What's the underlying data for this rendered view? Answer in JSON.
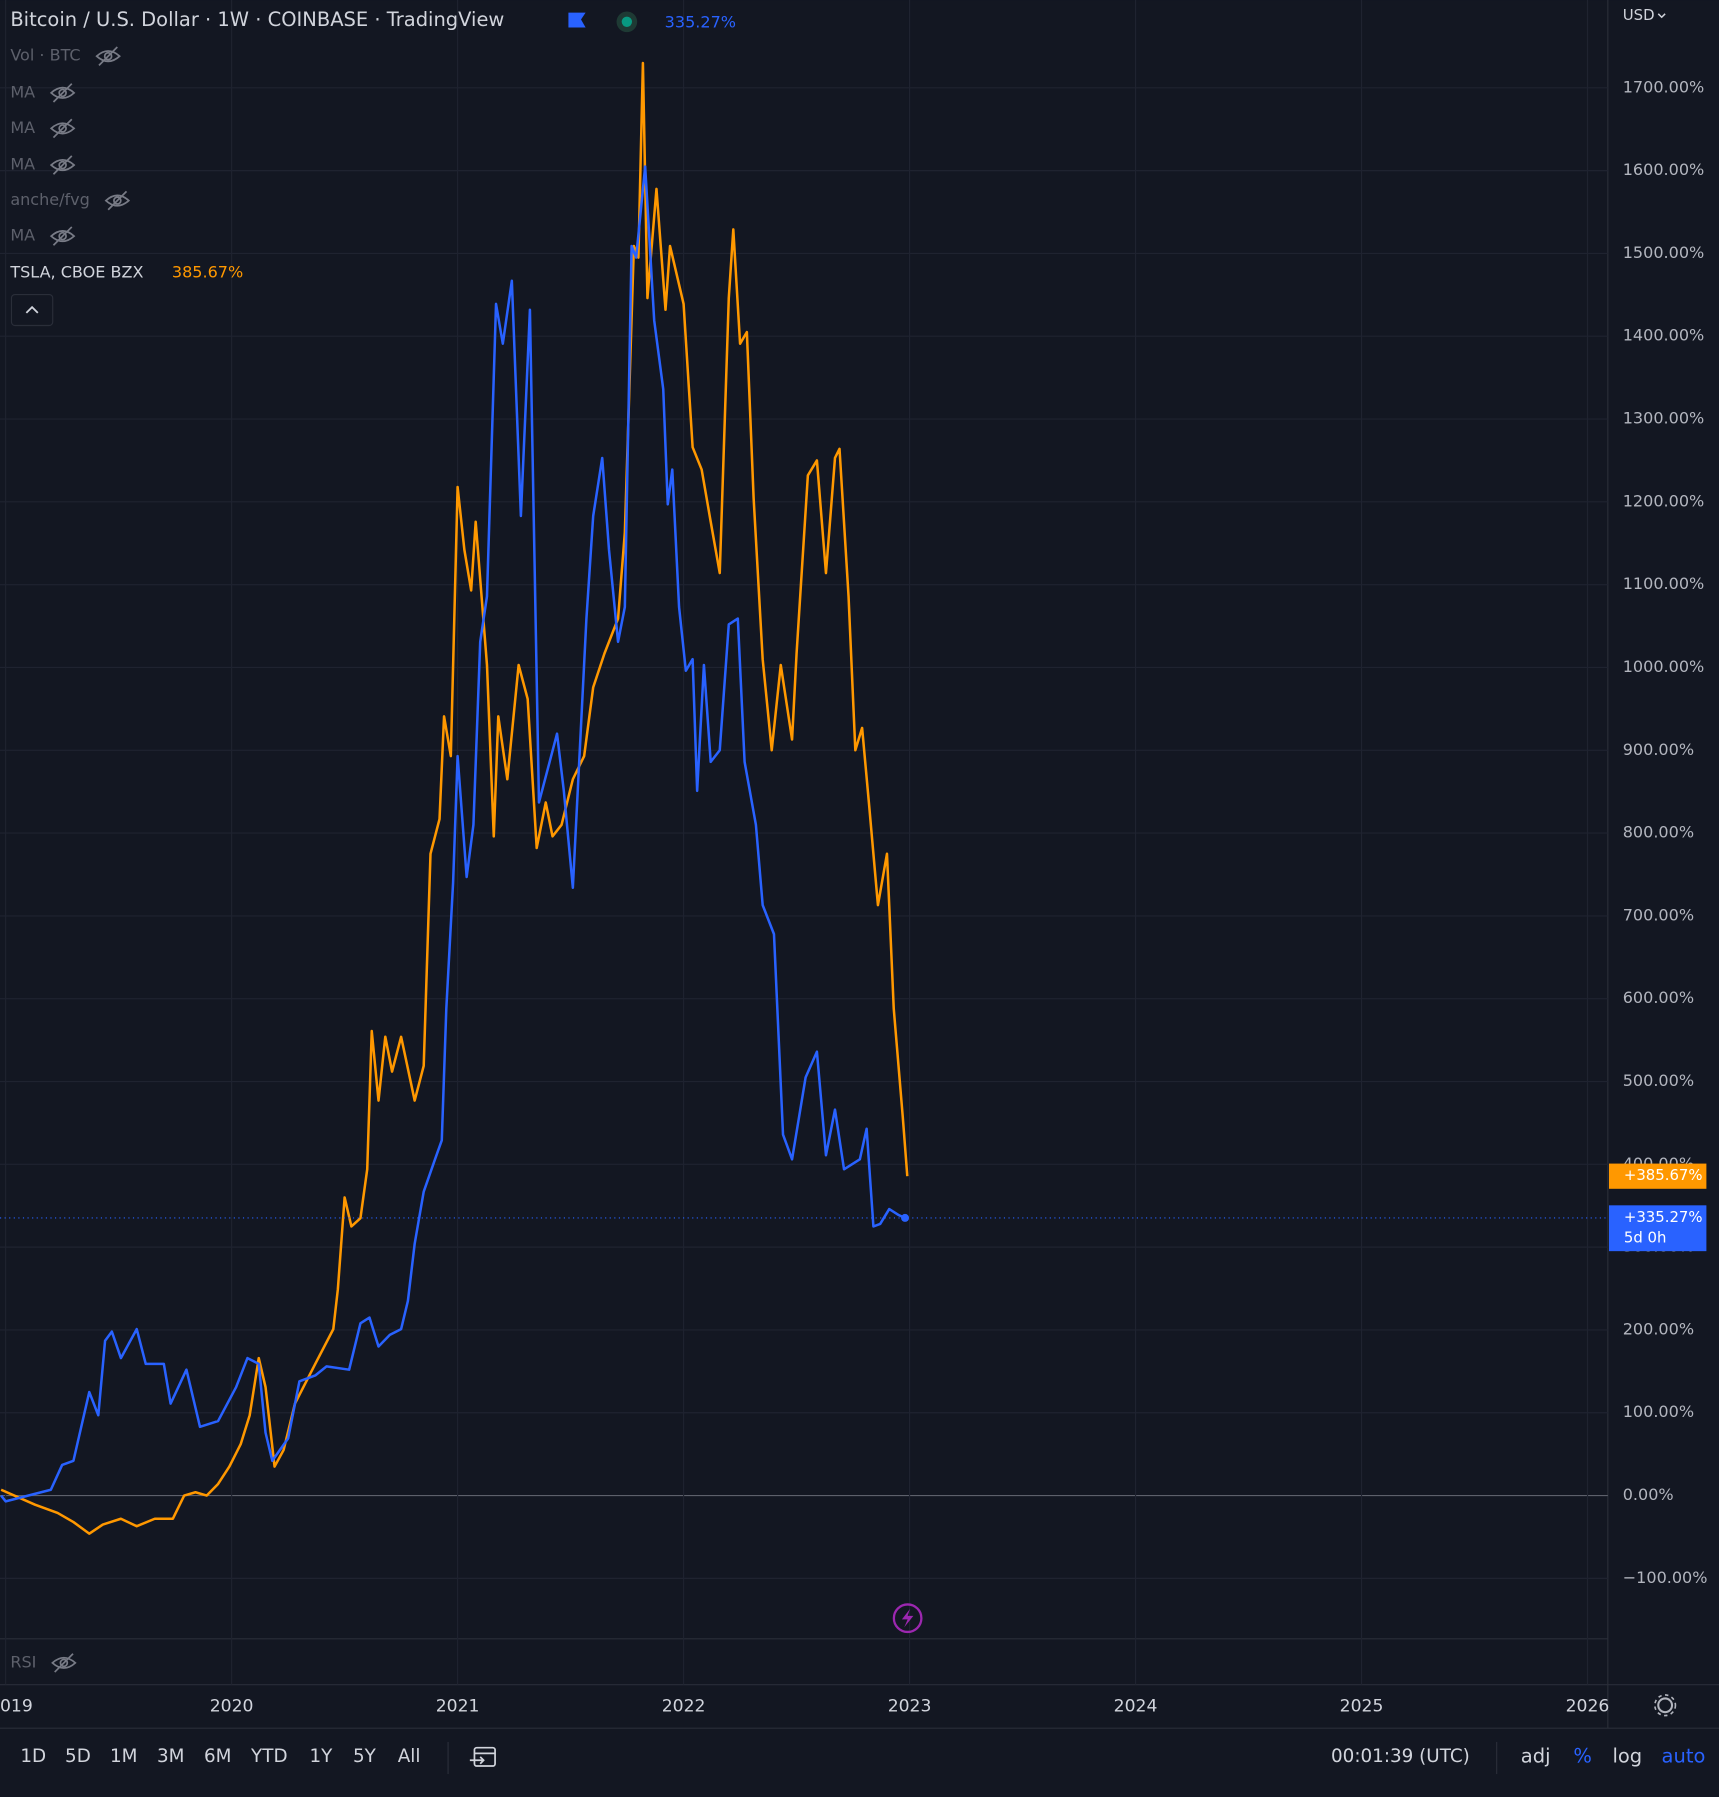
{
  "chart_data": {
    "type": "line",
    "xlim": [
      2018.975,
      2026.09
    ],
    "xticks": [
      {
        "value": 2019,
        "label": "019"
      },
      2020,
      2021,
      2022,
      2023,
      2024,
      2025,
      2026
    ],
    "ylim": [
      -173,
      1806
    ],
    "yticks": [
      {
        "value": -100,
        "label": "−100.00%"
      },
      {
        "value": 0,
        "label": "0.00%"
      },
      {
        "value": 100,
        "label": "100.00%"
      },
      {
        "value": 200,
        "label": "200.00%"
      },
      {
        "value": 300,
        "label": "300.00%"
      },
      {
        "value": 400,
        "label": "400.00%"
      },
      {
        "value": 500,
        "label": "500.00%"
      },
      {
        "value": 600,
        "label": "600.00%"
      },
      {
        "value": 700,
        "label": "700.00%"
      },
      {
        "value": 800,
        "label": "800.00%"
      },
      {
        "value": 900,
        "label": "900.00%"
      },
      {
        "value": 1000,
        "label": "1000.00%"
      },
      {
        "value": 1100,
        "label": "1100.00%"
      },
      {
        "value": 1200,
        "label": "1200.00%"
      },
      {
        "value": 1300,
        "label": "1300.00%"
      },
      {
        "value": 1400,
        "label": "1400.00%"
      },
      {
        "value": 1500,
        "label": "1500.00%"
      },
      {
        "value": 1600,
        "label": "1600.00%"
      },
      {
        "value": 1700,
        "label": "1700.00%"
      }
    ],
    "grid": true,
    "axis_currency": "USD",
    "series": [
      {
        "name": "Bitcoin / U.S. Dollar · 1W · COINBASE · TradingView",
        "color": "#2962ff",
        "legend_label": "335.27%",
        "badge_label": "+335.27%",
        "countdown": "5d 0h",
        "x": [
          2018.98,
          2019.0,
          2019.2,
          2019.25,
          2019.3,
          2019.37,
          2019.41,
          2019.44,
          2019.47,
          2019.51,
          2019.58,
          2019.62,
          2019.7,
          2019.73,
          2019.8,
          2019.86,
          2019.94,
          2020.02,
          2020.07,
          2020.12,
          2020.15,
          2020.18,
          2020.25,
          2020.3,
          2020.37,
          2020.42,
          2020.52,
          2020.57,
          2020.61,
          2020.65,
          2020.7,
          2020.75,
          2020.78,
          2020.81,
          2020.85,
          2020.9,
          2020.93,
          2020.95,
          2020.98,
          2021.0,
          2021.04,
          2021.07,
          2021.1,
          2021.13,
          2021.17,
          2021.2,
          2021.24,
          2021.28,
          2021.32,
          2021.36,
          2021.44,
          2021.47,
          2021.51,
          2021.57,
          2021.6,
          2021.64,
          2021.67,
          2021.71,
          2021.74,
          2021.77,
          2021.79,
          2021.83,
          2021.87,
          2021.91,
          2021.93,
          2021.95,
          2021.98,
          2022.01,
          2022.04,
          2022.06,
          2022.09,
          2022.12,
          2022.16,
          2022.2,
          2022.24,
          2022.27,
          2022.32,
          2022.35,
          2022.4,
          2022.44,
          2022.48,
          2022.54,
          2022.59,
          2022.63,
          2022.67,
          2022.71,
          2022.78,
          2022.81,
          2022.84,
          2022.87,
          2022.91,
          2022.95,
          2022.98
        ],
        "values": [
          0,
          -7,
          7,
          37,
          42,
          125,
          97,
          187,
          198,
          166,
          201,
          159,
          159,
          111,
          152,
          83,
          90,
          131,
          166,
          159,
          76,
          42,
          69,
          138,
          145,
          156,
          152,
          208,
          215,
          180,
          194,
          201,
          235,
          304,
          367,
          406,
          429,
          588,
          740,
          893,
          747,
          810,
          1031,
          1086,
          1439,
          1391,
          1467,
          1183,
          1432,
          837,
          920,
          851,
          734,
          1059,
          1183,
          1253,
          1142,
          1031,
          1073,
          1509,
          1495,
          1605,
          1419,
          1336,
          1197,
          1239,
          1073,
          996,
          1010,
          851,
          1003,
          886,
          900,
          1052,
          1059,
          886,
          810,
          713,
          678,
          436,
          406,
          505,
          536,
          411,
          466,
          394,
          406,
          443,
          325,
          328,
          346,
          339,
          335.27
        ]
      },
      {
        "name": "TSLA, CBOE BZX",
        "color": "#ff9800",
        "legend_label": "385.67%",
        "badge_label": "+385.67%",
        "x": [
          2018.98,
          2019.13,
          2019.23,
          2019.3,
          2019.37,
          2019.43,
          2019.51,
          2019.58,
          2019.66,
          2019.74,
          2019.79,
          2019.84,
          2019.89,
          2019.94,
          2019.99,
          2020.04,
          2020.08,
          2020.12,
          2020.15,
          2020.19,
          2020.23,
          2020.28,
          2020.37,
          2020.45,
          2020.47,
          2020.5,
          2020.53,
          2020.57,
          2020.6,
          2020.62,
          2020.65,
          2020.68,
          2020.71,
          2020.75,
          2020.81,
          2020.85,
          2020.88,
          2020.92,
          2020.94,
          2020.97,
          2021.0,
          2021.03,
          2021.06,
          2021.08,
          2021.13,
          2021.16,
          2021.18,
          2021.22,
          2021.27,
          2021.31,
          2021.35,
          2021.39,
          2021.42,
          2021.46,
          2021.51,
          2021.56,
          2021.6,
          2021.65,
          2021.71,
          2021.74,
          2021.78,
          2021.8,
          2021.82,
          2021.84,
          2021.88,
          2021.92,
          2021.94,
          2022.0,
          2022.04,
          2022.08,
          2022.12,
          2022.16,
          2022.2,
          2022.22,
          2022.25,
          2022.28,
          2022.31,
          2022.35,
          2022.39,
          2022.43,
          2022.48,
          2022.5,
          2022.55,
          2022.59,
          2022.63,
          2022.67,
          2022.69,
          2022.73,
          2022.76,
          2022.79,
          2022.82,
          2022.86,
          2022.9,
          2022.93,
          2022.97,
          2022.99
        ],
        "values": [
          7,
          -11,
          -21,
          -32,
          -46,
          -35,
          -28,
          -37,
          -28,
          -28,
          0,
          4,
          0,
          14,
          35,
          62,
          97,
          166,
          131,
          35,
          55,
          111,
          159,
          201,
          249,
          360,
          325,
          335,
          394,
          561,
          477,
          554,
          512,
          554,
          477,
          519,
          775,
          817,
          941,
          893,
          1218,
          1142,
          1093,
          1176,
          1003,
          796,
          941,
          865,
          1003,
          962,
          782,
          837,
          796,
          810,
          865,
          893,
          976,
          1017,
          1059,
          1163,
          1509,
          1495,
          1730,
          1446,
          1578,
          1432,
          1509,
          1439,
          1266,
          1239,
          1176,
          1114,
          1446,
          1529,
          1391,
          1405,
          1204,
          1010,
          900,
          1003,
          913,
          1017,
          1232,
          1250,
          1114,
          1253,
          1264,
          1086,
          900,
          927,
          837,
          713,
          775,
          588,
          457,
          385.67
        ]
      }
    ]
  },
  "ui": {
    "indicators": [
      "Vol · BTC",
      "MA",
      "MA",
      "MA",
      "anche/fvg",
      "MA"
    ],
    "sub_pane": "RSI",
    "timeframes": [
      "1D",
      "5D",
      "1M",
      "3M",
      "6M",
      "YTD",
      "1Y",
      "5Y",
      "All"
    ],
    "clock": "00:01:39 (UTC)",
    "scale_options": [
      {
        "label": "adj",
        "active": false
      },
      {
        "label": "%",
        "active": true
      },
      {
        "label": "log",
        "active": false
      },
      {
        "label": "auto",
        "active": true
      }
    ]
  }
}
